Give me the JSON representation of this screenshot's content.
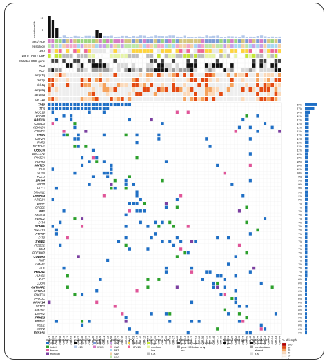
{
  "figure": {
    "mutation_label": "mutations/Mb",
    "tick_labels": [
      "10",
      "5"
    ],
    "clinical_labels": [
      "Sex/Type",
      "Histology",
      "HPV",
      "LOH+HRD + LST",
      "Mutated HRD gene",
      "AC3",
      "AC7"
    ],
    "scna_labels": [
      "amp 1q",
      "del 3p",
      "del 4q",
      "amp 3q",
      "amp 8q",
      "del 11p"
    ],
    "genes": [
      "TP53",
      "TTN",
      "MUC16",
      "LRP1B",
      "ARID1A",
      "CSMD3",
      "CDKN2A",
      "CSMD1",
      "KRAS",
      "USH2A",
      "RYR2",
      "NOTCH1",
      "OBSCN",
      "COL14A1",
      "PIK3CA",
      "FGFR3",
      "KMT2D",
      "FLG",
      "UTRN",
      "PCLO",
      "ZFHX4",
      "APOB",
      "PLEC",
      "DNAH11",
      "LRRTM4",
      "ARID1A",
      "BRAF",
      "ERBB2",
      "NF1",
      "SMAD4",
      "HERC2",
      "FAT4",
      "SCN9A",
      "RNF213",
      "PTPRT",
      "FAT3",
      "SYNE1",
      "ROBO2",
      "BDM",
      "PDE4DIP",
      "COL6A3",
      "FHIT",
      "LAMA1",
      "ALK",
      "HMCN1",
      "ALMS1",
      "KVC",
      "CUBN",
      "CNTNAP2",
      "SPTBN4",
      "PIK3CA",
      "PRKDC",
      "DNAH14",
      "SETD2",
      "PIK3R1",
      "DNAH2",
      "PRKD2",
      "PBRM1",
      "NSD1",
      "XIRP2",
      "EEF1A1"
    ],
    "gene_pcts": [
      "36%",
      "27%",
      "14%",
      "11%",
      "11%",
      "11%",
      "11%",
      "11%",
      "11%",
      "11%",
      "11%",
      "11%",
      "11%",
      "10%",
      "10%",
      "10%",
      "10%",
      "10%",
      "10%",
      "9%",
      "9%",
      "9%",
      "9%",
      "9%",
      "9%",
      "9%",
      "7%",
      "7%",
      "7%",
      "7%",
      "7%",
      "7%",
      "7%",
      "7%",
      "7%",
      "7%",
      "7%",
      "7%",
      "7%",
      "7%",
      "7%",
      "7%",
      "7%",
      "7%",
      "7%",
      "7%",
      "6%",
      "6%",
      "6%",
      "6%",
      "6%",
      "6%",
      "6%",
      "6%",
      "6%",
      "6%",
      "6%",
      "6%",
      "6%",
      "6%",
      "6%"
    ],
    "sample_labels": [
      "CUP-41",
      "CUP-55",
      "CUP-33",
      "CUP-28",
      "CUP-19",
      "CUP-11",
      "CUP-52",
      "CUP-45",
      "CUP-07",
      "CUP-38",
      "CUP-60",
      "CUP-14",
      "CUP-26",
      "CUP-03",
      "CUP-49",
      "CUP-31",
      "CUP-22",
      "CUP-58",
      "CUP-09",
      "CUP-47",
      "CUP-16",
      "CUP-36",
      "CUP-02",
      "CUP-53",
      "CUP-24",
      "CUP-40",
      "CUP-12",
      "CUP-57",
      "CUP-30",
      "CUP-05",
      "CUP-44",
      "CUP-18",
      "CUP-35",
      "CUP-61",
      "CUP-27",
      "CUP-08",
      "CUP-50",
      "CUP-21",
      "CUP-13",
      "CUP-42",
      "CUP-01",
      "CUP-32",
      "CUP-56",
      "CUP-25",
      "CUP-10",
      "CUP-46",
      "CUP-17",
      "CUP-39",
      "CUP-04",
      "CUP-51",
      "CUP-29",
      "CUP-62",
      "CUP-15",
      "CUP-37",
      "CUP-06",
      "CUP-48",
      "CUP-20",
      "CUP-34",
      "CUP-59",
      "CUP-23",
      "CUP-43",
      "CUP-54",
      "CUP-63",
      "CUP-64"
    ],
    "legend": {
      "somatic": {
        "title": "Somatic alterations",
        "items": [
          "SNV",
          "indel",
          "fusion",
          "fsc/total"
        ]
      },
      "mutmb": {
        "title": "mutations/Mb",
        "items": [
          ">=10",
          "<10"
        ]
      },
      "sextype": {
        "title": "Sex/Type",
        "items": [
          "WES",
          "WGS"
        ]
      },
      "histology": {
        "title": "Histology",
        "items": [
          "ADE",
          "CAR",
          "NET",
          "SAR",
          "SCC",
          "MEL"
        ]
      },
      "hpv": {
        "title": "HPV",
        "items": [
          "HPV16",
          "HPV18"
        ]
      },
      "lohhrd": {
        "title": "LOH+HRD + LST",
        "items": [
          "high",
          "medium",
          "low",
          "n.a."
        ]
      },
      "hrdstatus": {
        "title": "HRD status",
        "items": [
          "pos. HRDetect & CHORD",
          "pos. HRDetect only",
          "no"
        ]
      },
      "mutated": {
        "title": "Mutated HRD gene",
        "items": [
          "yes",
          "no"
        ]
      },
      "ac": {
        "title": "AC3/AC4/AC7",
        "items": [
          "dominant",
          "nondominant",
          "absent",
          "n.a."
        ]
      },
      "scale": {
        "title": "% of length",
        "ticks": [
          "100",
          "80",
          "60",
          "40",
          "20",
          "0"
        ]
      }
    },
    "colors": {
      "snv": "#1f6fc5",
      "indel": "#2ca02c",
      "fusion": "#e05599",
      "fsc": "#7b3fa0",
      "cnv_high": "#e34a12",
      "cnv_mid": "#f5a25d",
      "cnv_low": "#fbd9b9"
    }
  }
}
